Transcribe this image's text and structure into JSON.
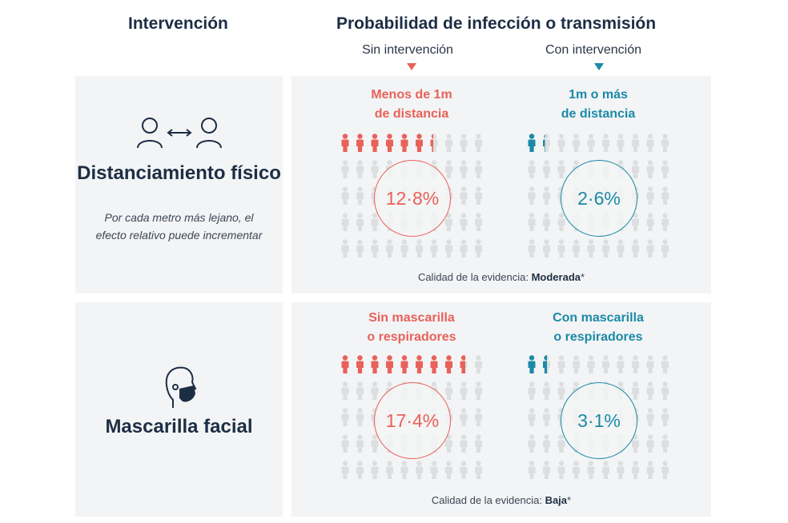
{
  "header": {
    "left_title": "Intervención",
    "right_title": "Probabilidad de infección o transmisión",
    "without_label": "Sin intervención",
    "with_label": "Con intervención"
  },
  "colors": {
    "without": "#e8625a",
    "with": "#1b8aa8",
    "inactive": "#dcdee0",
    "panel": "#f3f4f5",
    "title": "#1d2e44"
  },
  "interventions": [
    {
      "icon": "two-people-distance-icon",
      "title": "Distanciamiento físico",
      "note": "Por cada metro más lejano, el efecto relativo puede incrementar",
      "without": {
        "label_line1": "Menos de 1m",
        "label_line2": "de distancia",
        "value_text": "12·8%",
        "value": 12.8
      },
      "with": {
        "label_line1": "1m o más",
        "label_line2": "de distancia",
        "value_text": "2·6%",
        "value": 2.6
      },
      "quality_prefix": "Calidad de la evidencia: ",
      "quality_value": "Moderada",
      "quality_suffix": "*"
    },
    {
      "icon": "face-mask-icon",
      "title": "Mascarilla facial",
      "note": "",
      "without": {
        "label_line1": "Sin mascarilla",
        "label_line2": "o respiradores",
        "value_text": "17·4%",
        "value": 17.4
      },
      "with": {
        "label_line1": "Con mascarilla",
        "label_line2": "o respiradores",
        "value_text": "3·1%",
        "value": 3.1
      },
      "quality_prefix": "Calidad de la evidencia: ",
      "quality_value": "Baja",
      "quality_suffix": "*"
    }
  ]
}
